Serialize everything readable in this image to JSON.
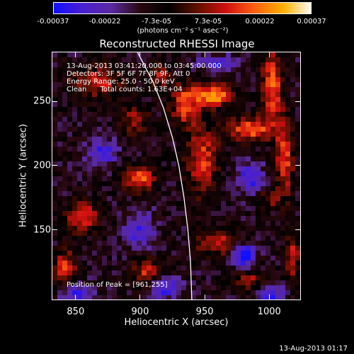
{
  "colorbar": {
    "tick_labels": [
      "-0.00037",
      "-0.00022",
      "-7.3e-05",
      "7.3e-05",
      "0.00022",
      "0.00037"
    ],
    "units": "(photons cm⁻² s⁻¹ asec⁻²)",
    "colors": [
      "#1010ff",
      "#4a1fd0",
      "#5a2aa0",
      "#2a0810",
      "#000000",
      "#601000",
      "#d01010",
      "#ff6010",
      "#ffb000",
      "#ffffff"
    ]
  },
  "title": "Reconstructed RHESSI Image",
  "info_lines": [
    "13-Aug-2013 03:41:20.000 to 03:45:00.000",
    "Detectors: 3F 5F 6F 7F 8F 9F, Att 0",
    "Energy Range: 25.0 - 50.0 keV",
    "Clean      Total counts: 1.63E+04"
  ],
  "peak_text": "Position of Peak = [961,255]",
  "timestamp": "13-Aug-2013 01:17",
  "chart_data": {
    "type": "heatmap",
    "title": "Reconstructed RHESSI Image",
    "xlabel": "Heliocentric X (arcsec)",
    "ylabel": "Heliocentric Y (arcsec)",
    "xlim": [
      832,
      1024
    ],
    "ylim": [
      96,
      288
    ],
    "x_ticks": [
      850,
      900,
      950,
      1000
    ],
    "y_ticks": [
      150,
      200,
      250
    ],
    "color_range": [
      -0.00037,
      0.00037
    ],
    "peak_position": [
      961,
      255
    ],
    "limb_curve": [
      [
        898,
        288
      ],
      [
        910,
        265
      ],
      [
        918,
        245
      ],
      [
        925,
        222
      ],
      [
        930,
        200
      ],
      [
        934,
        175
      ],
      [
        937,
        150
      ],
      [
        939,
        125
      ],
      [
        940,
        96
      ]
    ],
    "blobs": [
      {
        "x": 958,
        "y": 255,
        "sx": 10,
        "sy": 6,
        "amp": 1.0
      },
      {
        "x": 935,
        "y": 248,
        "sx": 8,
        "sy": 12,
        "amp": 0.75
      },
      {
        "x": 985,
        "y": 228,
        "sx": 12,
        "sy": 7,
        "amp": 0.85
      },
      {
        "x": 948,
        "y": 205,
        "sx": 9,
        "sy": 20,
        "amp": 0.7
      },
      {
        "x": 1002,
        "y": 262,
        "sx": 6,
        "sy": 20,
        "amp": 0.8
      },
      {
        "x": 1012,
        "y": 205,
        "sx": 5,
        "sy": 22,
        "amp": 0.75
      },
      {
        "x": 868,
        "y": 265,
        "sx": 16,
        "sy": 10,
        "amp": 0.55
      },
      {
        "x": 895,
        "y": 235,
        "sx": 9,
        "sy": 8,
        "amp": 0.5
      },
      {
        "x": 899,
        "y": 190,
        "sx": 9,
        "sy": 7,
        "amp": 0.85
      },
      {
        "x": 855,
        "y": 160,
        "sx": 9,
        "sy": 8,
        "amp": 0.8
      },
      {
        "x": 842,
        "y": 120,
        "sx": 6,
        "sy": 10,
        "amp": 0.75
      },
      {
        "x": 905,
        "y": 118,
        "sx": 8,
        "sy": 7,
        "amp": 0.65
      },
      {
        "x": 960,
        "y": 140,
        "sx": 12,
        "sy": 8,
        "amp": 0.6
      },
      {
        "x": 985,
        "y": 110,
        "sx": 10,
        "sy": 6,
        "amp": 0.55
      },
      {
        "x": 1018,
        "y": 130,
        "sx": 4,
        "sy": 14,
        "amp": 0.6
      },
      {
        "x": 915,
        "y": 270,
        "sx": 6,
        "sy": 8,
        "amp": 0.5
      },
      {
        "x": 1000,
        "y": 175,
        "sx": 6,
        "sy": 6,
        "amp": 0.45
      },
      {
        "x": 980,
        "y": 130,
        "sx": 6,
        "sy": 6,
        "amp": -0.9
      },
      {
        "x": 870,
        "y": 210,
        "sx": 8,
        "sy": 8,
        "amp": -0.55
      },
      {
        "x": 850,
        "y": 100,
        "sx": 8,
        "sy": 6,
        "amp": -0.6
      },
      {
        "x": 1000,
        "y": 100,
        "sx": 8,
        "sy": 6,
        "amp": -0.6
      },
      {
        "x": 900,
        "y": 150,
        "sx": 8,
        "sy": 10,
        "amp": -0.5
      },
      {
        "x": 985,
        "y": 190,
        "sx": 8,
        "sy": 8,
        "amp": -0.55
      },
      {
        "x": 960,
        "y": 280,
        "sx": 10,
        "sy": 4,
        "amp": -0.6
      },
      {
        "x": 920,
        "y": 105,
        "sx": 8,
        "sy": 6,
        "amp": -0.6
      }
    ]
  }
}
